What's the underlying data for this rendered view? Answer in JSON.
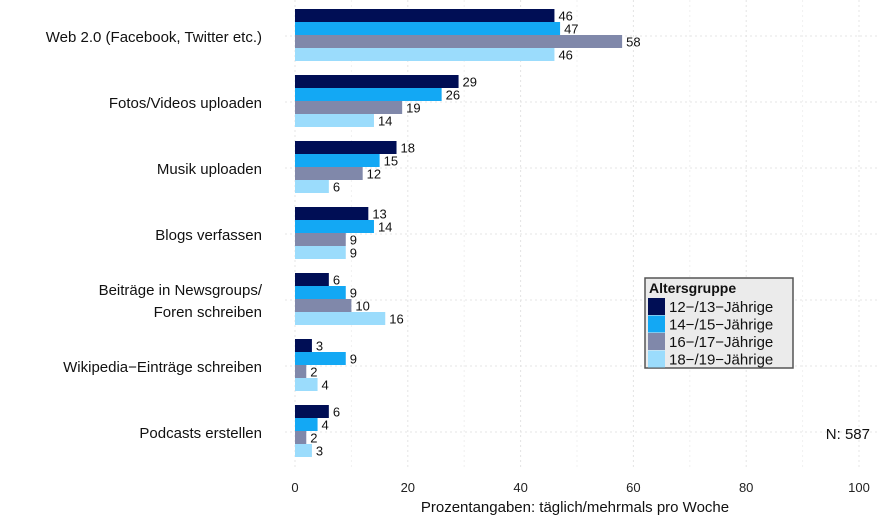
{
  "chart_data": {
    "type": "bar",
    "orientation": "horizontal",
    "categories": [
      "Web 2.0 (Facebook, Twitter etc.)",
      "Fotos/Videos uploaden",
      "Musik uploaden",
      "Blogs verfassen",
      "Beiträge in Newsgroups/\nForen schreiben",
      "Wikipedia−Einträge schreiben",
      "Podcasts erstellen"
    ],
    "series": [
      {
        "name": "12−/13−Jährige",
        "color": "#000e55",
        "values": [
          46,
          29,
          18,
          13,
          6,
          3,
          6
        ]
      },
      {
        "name": "14−/15−Jährige",
        "color": "#13a8f4",
        "values": [
          47,
          26,
          15,
          14,
          9,
          9,
          4
        ]
      },
      {
        "name": "16−/17−Jährige",
        "color": "#8088aa",
        "values": [
          58,
          19,
          12,
          9,
          10,
          2,
          2
        ]
      },
      {
        "name": "18−/19−Jährige",
        "color": "#9bdcfc",
        "values": [
          46,
          14,
          6,
          9,
          16,
          4,
          3
        ]
      }
    ],
    "xlabel": "Prozentangaben: täglich/mehrmals pro Woche",
    "xlim": [
      0,
      100
    ],
    "xticks": [
      0,
      20,
      40,
      60,
      80,
      100
    ],
    "legend_title": "Altersgruppe",
    "legend_position": "right",
    "annotation": "N: 587",
    "grid": true
  }
}
